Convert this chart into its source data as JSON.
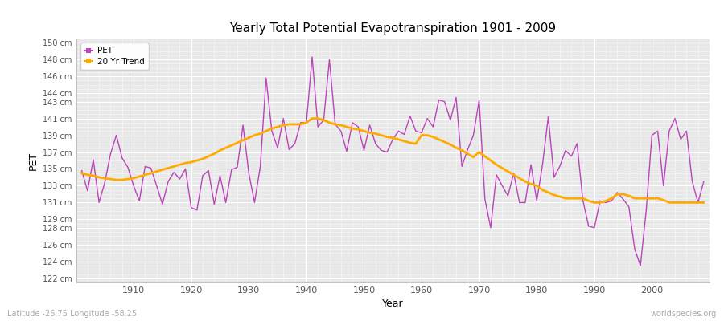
{
  "title": "Yearly Total Potential Evapotranspiration 1901 - 2009",
  "xlabel": "Year",
  "ylabel": "PET",
  "lat_lon_label": "Latitude -26.75 Longitude -58.25",
  "watermark": "worldspecies.org",
  "pet_color": "#bb44bb",
  "trend_color": "#ffaa00",
  "fig_facecolor": "#ffffff",
  "plot_bg_color": "#e8e8e8",
  "grid_color": "#ffffff",
  "ylim_min": 121.5,
  "ylim_max": 150.5,
  "ytick_values": [
    122,
    124,
    126,
    128,
    129,
    131,
    133,
    135,
    137,
    139,
    141,
    143,
    144,
    146,
    148,
    150
  ],
  "ytick_labels": [
    "122 cm",
    "124 cm",
    "126 cm",
    "128 cm",
    "129 cm",
    "131 cm",
    "133 cm",
    "135 cm",
    "137 cm",
    "139 cm",
    "141 cm",
    "143 cm",
    "144 cm",
    "146 cm",
    "148 cm",
    "150 cm"
  ],
  "xlim_min": 1900,
  "xlim_max": 2010,
  "xtick_values": [
    1910,
    1920,
    1930,
    1940,
    1950,
    1960,
    1970,
    1980,
    1990,
    2000
  ],
  "years": [
    1901,
    1902,
    1903,
    1904,
    1905,
    1906,
    1907,
    1908,
    1909,
    1910,
    1911,
    1912,
    1913,
    1914,
    1915,
    1916,
    1917,
    1918,
    1919,
    1920,
    1921,
    1922,
    1923,
    1924,
    1925,
    1926,
    1927,
    1928,
    1929,
    1930,
    1931,
    1932,
    1933,
    1934,
    1935,
    1936,
    1937,
    1938,
    1939,
    1940,
    1941,
    1942,
    1943,
    1944,
    1945,
    1946,
    1947,
    1948,
    1949,
    1950,
    1951,
    1952,
    1953,
    1954,
    1955,
    1956,
    1957,
    1958,
    1959,
    1960,
    1961,
    1962,
    1963,
    1964,
    1965,
    1966,
    1967,
    1968,
    1969,
    1970,
    1971,
    1972,
    1973,
    1974,
    1975,
    1976,
    1977,
    1978,
    1979,
    1980,
    1981,
    1982,
    1983,
    1984,
    1985,
    1986,
    1987,
    1988,
    1989,
    1990,
    1991,
    1992,
    1993,
    1994,
    1995,
    1996,
    1997,
    1998,
    1999,
    2000,
    2001,
    2002,
    2003,
    2004,
    2005,
    2006,
    2007,
    2008,
    2009
  ],
  "pet_values": [
    134.8,
    132.4,
    136.1,
    131.0,
    133.4,
    136.8,
    139.0,
    136.3,
    135.2,
    133.0,
    131.2,
    135.3,
    135.1,
    133.0,
    130.8,
    133.5,
    134.6,
    133.8,
    135.0,
    130.4,
    130.1,
    134.2,
    134.8,
    130.8,
    134.2,
    131.0,
    134.9,
    135.2,
    140.2,
    134.5,
    131.0,
    135.3,
    145.8,
    139.5,
    137.5,
    141.0,
    137.3,
    138.0,
    140.5,
    140.5,
    148.3,
    140.0,
    140.8,
    148.0,
    140.3,
    139.5,
    137.1,
    140.5,
    140.0,
    137.2,
    140.2,
    138.0,
    137.2,
    137.0,
    138.5,
    139.5,
    139.1,
    141.3,
    139.5,
    139.3,
    141.0,
    140.0,
    143.2,
    143.0,
    140.8,
    143.5,
    135.3,
    137.3,
    139.0,
    143.2,
    131.4,
    128.0,
    134.3,
    133.0,
    131.8,
    134.5,
    131.0,
    131.0,
    135.5,
    131.2,
    135.5,
    141.2,
    134.0,
    135.3,
    137.2,
    136.5,
    138.0,
    131.3,
    128.2,
    128.0,
    131.2,
    131.0,
    131.2,
    132.2,
    131.4,
    130.5,
    125.5,
    123.5,
    130.0,
    139.0,
    139.5,
    133.0,
    139.5,
    141.0,
    138.5,
    139.5,
    133.5,
    131.0,
    133.5
  ],
  "trend_values": [
    134.5,
    134.3,
    134.2,
    134.0,
    133.9,
    133.8,
    133.7,
    133.7,
    133.8,
    133.9,
    134.1,
    134.3,
    134.5,
    134.7,
    134.9,
    135.1,
    135.3,
    135.5,
    135.7,
    135.8,
    136.0,
    136.2,
    136.5,
    136.8,
    137.2,
    137.5,
    137.8,
    138.1,
    138.4,
    138.7,
    139.0,
    139.2,
    139.5,
    139.8,
    140.0,
    140.2,
    140.3,
    140.3,
    140.3,
    140.5,
    141.0,
    141.0,
    140.8,
    140.5,
    140.3,
    140.2,
    140.0,
    139.8,
    139.7,
    139.5,
    139.3,
    139.2,
    139.0,
    138.8,
    138.7,
    138.5,
    138.3,
    138.1,
    138.0,
    139.0,
    139.0,
    138.8,
    138.5,
    138.2,
    137.9,
    137.5,
    137.2,
    136.8,
    136.4,
    137.0,
    136.5,
    136.0,
    135.5,
    135.1,
    134.7,
    134.3,
    133.9,
    133.5,
    133.2,
    133.0,
    132.5,
    132.2,
    131.9,
    131.7,
    131.5,
    131.5,
    131.5,
    131.5,
    131.2,
    131.0,
    131.0,
    131.2,
    131.5,
    132.0,
    132.0,
    131.8,
    131.5,
    131.5,
    131.5,
    131.5,
    131.5,
    131.3,
    131.0,
    131.0,
    131.0,
    131.0,
    131.0,
    131.0,
    131.0
  ]
}
